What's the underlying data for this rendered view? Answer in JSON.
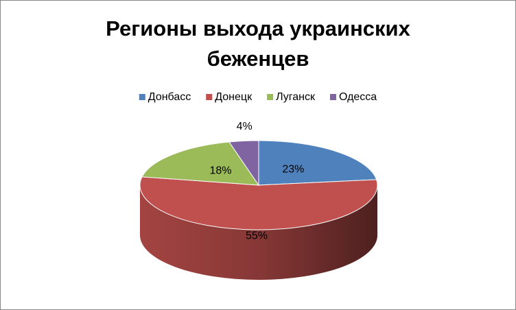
{
  "chart_data": {
    "type": "pie",
    "title": "Регионы выхода украинских беженцев",
    "categories": [
      "Донбасс",
      "Донецк",
      "Луганск",
      "Одесса"
    ],
    "values": [
      23,
      55,
      18,
      4
    ],
    "value_labels": [
      "23%",
      "55%",
      "18%",
      "4%"
    ],
    "colors": [
      "#4f81bd",
      "#c0504d",
      "#9bbb59",
      "#8064a2"
    ],
    "legend": "top"
  }
}
